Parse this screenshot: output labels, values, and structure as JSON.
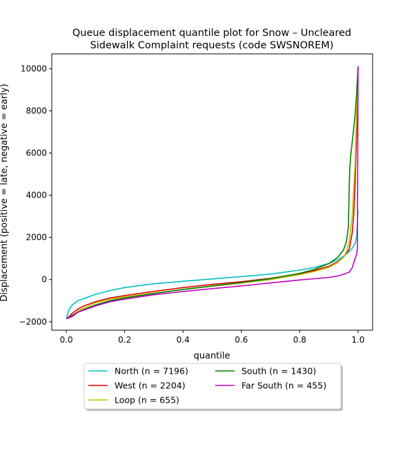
{
  "chart_data": {
    "type": "line",
    "title": [
      "Queue displacement quantile plot for Snow – Uncleared",
      "Sidewalk Complaint  requests (code SWSNOREM)"
    ],
    "xlabel": "quantile",
    "ylabel": "Displacement (positive = late, negative = early)",
    "xlim": [
      -0.05,
      1.05
    ],
    "ylim": [
      -2400,
      10700
    ],
    "xticks": [
      0.0,
      0.2,
      0.4,
      0.6,
      0.8,
      1.0
    ],
    "xtick_labels": [
      "0.0",
      "0.2",
      "0.4",
      "0.6",
      "0.8",
      "1.0"
    ],
    "yticks": [
      -2000,
      0,
      2000,
      4000,
      6000,
      8000,
      10000
    ],
    "ytick_labels": [
      "−2000",
      "0",
      "2000",
      "4000",
      "6000",
      "8000",
      "10000"
    ],
    "grid": false,
    "legend_position": "below-plot",
    "series": [
      {
        "name": "North (n = 7196)",
        "color": "#00bfbf",
        "x": [
          0.0,
          0.005,
          0.01,
          0.02,
          0.04,
          0.06,
          0.1,
          0.15,
          0.2,
          0.3,
          0.4,
          0.5,
          0.6,
          0.7,
          0.8,
          0.85,
          0.9,
          0.93,
          0.95,
          0.97,
          0.98,
          0.99,
          0.995,
          1.0
        ],
        "y": [
          -1850,
          -1600,
          -1400,
          -1200,
          -1000,
          -900,
          -700,
          -520,
          -380,
          -200,
          -80,
          30,
          140,
          260,
          450,
          570,
          760,
          930,
          1100,
          1330,
          1480,
          1700,
          2000,
          3300
        ]
      },
      {
        "name": "West (n = 2204)",
        "color": "#e00000",
        "x": [
          0.0,
          0.01,
          0.02,
          0.04,
          0.06,
          0.1,
          0.15,
          0.2,
          0.3,
          0.4,
          0.5,
          0.6,
          0.7,
          0.8,
          0.85,
          0.9,
          0.93,
          0.95,
          0.97,
          0.98,
          0.985,
          0.99,
          0.995,
          1.0
        ],
        "y": [
          -1850,
          -1750,
          -1600,
          -1400,
          -1250,
          -1050,
          -870,
          -760,
          -560,
          -380,
          -230,
          -100,
          60,
          280,
          430,
          630,
          840,
          1050,
          1450,
          2200,
          3000,
          4500,
          7000,
          10100
        ]
      },
      {
        "name": "Loop (n = 655)",
        "color": "#bfbf00",
        "x": [
          0.0,
          0.01,
          0.02,
          0.04,
          0.06,
          0.1,
          0.15,
          0.2,
          0.3,
          0.4,
          0.5,
          0.6,
          0.7,
          0.8,
          0.85,
          0.9,
          0.93,
          0.95,
          0.96,
          0.97,
          0.98,
          0.99,
          0.995,
          1.0
        ],
        "y": [
          -1850,
          -1800,
          -1700,
          -1500,
          -1350,
          -1100,
          -930,
          -820,
          -640,
          -470,
          -320,
          -170,
          0,
          230,
          380,
          580,
          800,
          1050,
          1300,
          1800,
          3000,
          5500,
          8000,
          10000
        ]
      },
      {
        "name": "South (n = 1430)",
        "color": "#008000",
        "x": [
          0.0,
          0.01,
          0.02,
          0.04,
          0.06,
          0.1,
          0.15,
          0.2,
          0.3,
          0.4,
          0.5,
          0.6,
          0.7,
          0.8,
          0.85,
          0.9,
          0.93,
          0.95,
          0.96,
          0.967,
          0.97,
          0.972,
          0.975,
          0.98,
          0.99,
          0.995,
          1.0
        ],
        "y": [
          -1850,
          -1800,
          -1700,
          -1550,
          -1420,
          -1200,
          -1000,
          -870,
          -660,
          -470,
          -300,
          -140,
          40,
          300,
          480,
          760,
          1050,
          1400,
          1800,
          2500,
          4500,
          5300,
          5900,
          6500,
          7800,
          8800,
          10100
        ]
      },
      {
        "name": "Far South (n = 455)",
        "color": "#bf00bf",
        "x": [
          0.0,
          0.01,
          0.02,
          0.04,
          0.06,
          0.1,
          0.15,
          0.2,
          0.3,
          0.4,
          0.5,
          0.6,
          0.7,
          0.8,
          0.85,
          0.9,
          0.93,
          0.95,
          0.97,
          0.98,
          0.99,
          0.995,
          0.998,
          1.0
        ],
        "y": [
          -1850,
          -1800,
          -1750,
          -1550,
          -1450,
          -1250,
          -1050,
          -930,
          -720,
          -570,
          -430,
          -300,
          -160,
          -20,
          40,
          100,
          170,
          250,
          350,
          550,
          1000,
          1200,
          1500,
          10100
        ]
      }
    ]
  }
}
